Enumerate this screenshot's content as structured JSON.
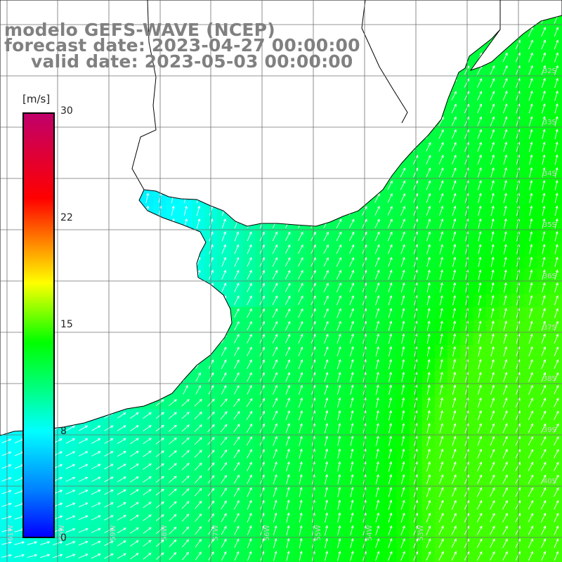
{
  "title": {
    "line1": "modelo GEFS-WAVE (NCEP)",
    "line2": "forecast date: 2023-04-27 00:00:00",
    "line3": "valid date: 2023-05-03 00:00:00"
  },
  "colorbar": {
    "unit": "[m/s]",
    "ticks": [
      "30",
      "22",
      "15",
      "8",
      "0"
    ],
    "range": [
      0,
      30
    ],
    "colors": [
      "#0000ff",
      "#0080ff",
      "#00ffff",
      "#00ff80",
      "#00ff00",
      "#ffff00",
      "#ff8000",
      "#ff0000",
      "#c0006a"
    ]
  },
  "map": {
    "lat_labels": [
      "32S",
      "33S",
      "34S",
      "35S",
      "36S",
      "37S",
      "38S",
      "39S",
      "40S"
    ],
    "lon_labels": [
      "61W",
      "60W",
      "59W",
      "58W",
      "57W",
      "56W",
      "55W",
      "54W",
      "53W"
    ],
    "land_color": "#ffffff",
    "grid_color": "#707070",
    "coast_color": "#000000",
    "arrow_color": "#ffffff"
  }
}
